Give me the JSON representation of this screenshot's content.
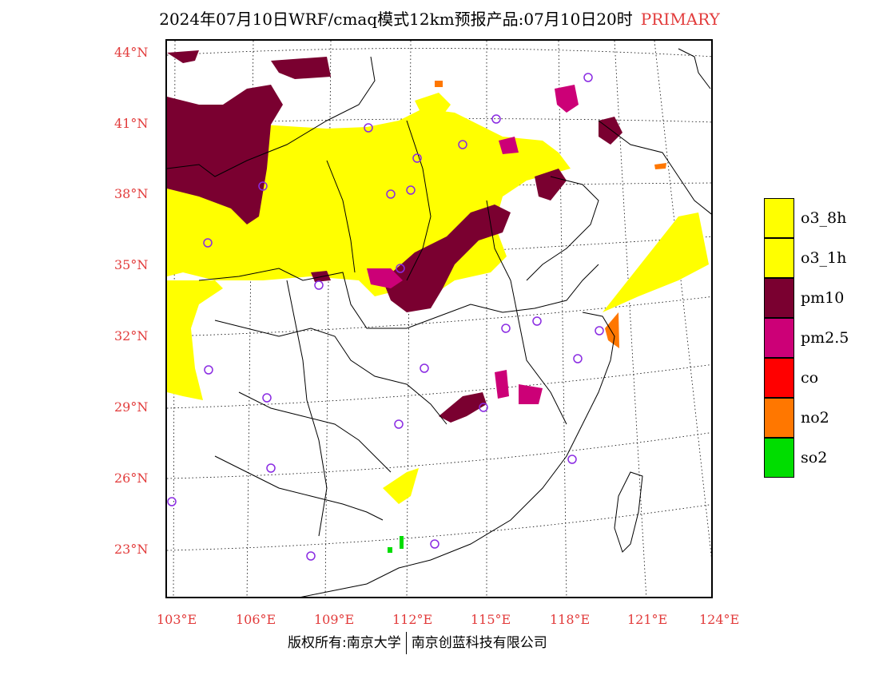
{
  "title": {
    "main": "2024年07月10日WRF/cmaq模式12km预报产品:07月10日20时",
    "tag": "PRIMARY"
  },
  "lat_labels": [
    "44°N",
    "41°N",
    "38°N",
    "35°N",
    "32°N",
    "29°N",
    "26°N",
    "23°N"
  ],
  "lon_labels": [
    "103°E",
    "106°E",
    "109°E",
    "112°E",
    "115°E",
    "118°E",
    "121°E",
    "124°E"
  ],
  "legend": [
    {
      "label": "o3_8h",
      "color": "#ffff00"
    },
    {
      "label": "o3_1h",
      "color": "#ffff00"
    },
    {
      "label": "pm10",
      "color": "#7a0030"
    },
    {
      "label": "pm2.5",
      "color": "#cc0077"
    },
    {
      "label": "co",
      "color": "#ff0000"
    },
    {
      "label": "no2",
      "color": "#ff7700"
    },
    {
      "label": "so2",
      "color": "#00dd00"
    }
  ],
  "footer": {
    "left": "版权所有:南京大学",
    "right": "南京创蓝科技有限公司"
  },
  "colors": {
    "axis_text": "#e23b3b",
    "station_marker": "#8a2be2"
  }
}
